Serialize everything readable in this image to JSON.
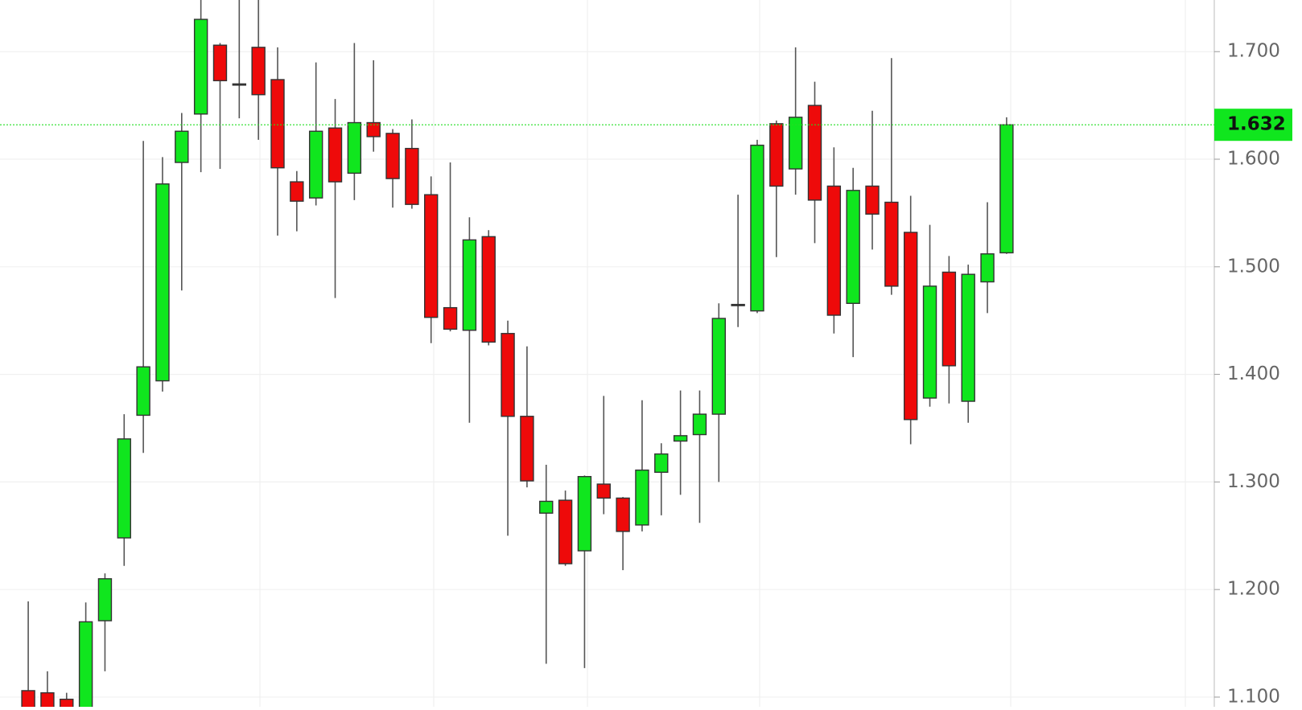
{
  "chart_data": {
    "type": "candlestick",
    "open": [
      1.106,
      1.104,
      1.098,
      1.09,
      1.171,
      1.248,
      1.362,
      1.394,
      1.597,
      1.642,
      1.706,
      1.67,
      1.704,
      1.674,
      1.579,
      1.564,
      1.629,
      1.587,
      1.634,
      1.624,
      1.61,
      1.567,
      1.462,
      1.441,
      1.528,
      1.438,
      1.361,
      1.271,
      1.283,
      1.236,
      1.298,
      1.285,
      1.26,
      1.309,
      1.338,
      1.344,
      1.363,
      1.465,
      1.459,
      1.633,
      1.591,
      1.65,
      1.575,
      1.466,
      1.575,
      1.56,
      1.532,
      1.378,
      1.495,
      1.375,
      1.486,
      1.513
    ],
    "high": [
      1.189,
      1.124,
      1.104,
      1.188,
      1.215,
      1.363,
      1.617,
      1.602,
      1.643,
      1.748,
      1.708,
      1.748,
      1.748,
      1.704,
      1.589,
      1.69,
      1.656,
      1.708,
      1.692,
      1.628,
      1.637,
      1.584,
      1.597,
      1.546,
      1.534,
      1.45,
      1.426,
      1.316,
      1.292,
      1.306,
      1.38,
      1.286,
      1.376,
      1.336,
      1.385,
      1.385,
      1.466,
      1.567,
      1.618,
      1.636,
      1.704,
      1.672,
      1.611,
      1.592,
      1.645,
      1.694,
      1.566,
      1.539,
      1.51,
      1.502,
      1.56,
      1.639
    ],
    "low": [
      1.08,
      1.08,
      1.08,
      1.08,
      1.124,
      1.222,
      1.327,
      1.384,
      1.478,
      1.588,
      1.591,
      1.638,
      1.618,
      1.529,
      1.533,
      1.557,
      1.471,
      1.562,
      1.607,
      1.555,
      1.554,
      1.429,
      1.44,
      1.355,
      1.427,
      1.25,
      1.295,
      1.131,
      1.222,
      1.127,
      1.27,
      1.218,
      1.254,
      1.269,
      1.288,
      1.262,
      1.3,
      1.444,
      1.457,
      1.509,
      1.567,
      1.522,
      1.438,
      1.416,
      1.516,
      1.474,
      1.335,
      1.37,
      1.373,
      1.355,
      1.457,
      1.512
    ],
    "close": [
      1.09,
      1.09,
      1.09,
      1.17,
      1.21,
      1.34,
      1.407,
      1.577,
      1.626,
      1.73,
      1.673,
      1.67,
      1.66,
      1.592,
      1.561,
      1.626,
      1.579,
      1.634,
      1.621,
      1.582,
      1.558,
      1.453,
      1.442,
      1.525,
      1.43,
      1.361,
      1.301,
      1.282,
      1.224,
      1.305,
      1.285,
      1.254,
      1.311,
      1.326,
      1.343,
      1.363,
      1.452,
      1.465,
      1.613,
      1.575,
      1.639,
      1.562,
      1.455,
      1.571,
      1.549,
      1.482,
      1.358,
      1.482,
      1.408,
      1.493,
      1.512,
      1.632
    ],
    "up_color": "#10e61e",
    "down_color": "#ee0a0a",
    "last_value": 1.632,
    "ylim": [
      1.091,
      1.748
    ],
    "yticks": [
      {
        "value": 1.1,
        "label": "1.100"
      },
      {
        "value": 1.2,
        "label": "1.200"
      },
      {
        "value": 1.3,
        "label": "1.300"
      },
      {
        "value": 1.4,
        "label": "1.400"
      },
      {
        "value": 1.5,
        "label": "1.500"
      },
      {
        "value": 1.6,
        "label": "1.600"
      },
      {
        "value": 1.7,
        "label": "1.700"
      }
    ],
    "grid": true
  }
}
